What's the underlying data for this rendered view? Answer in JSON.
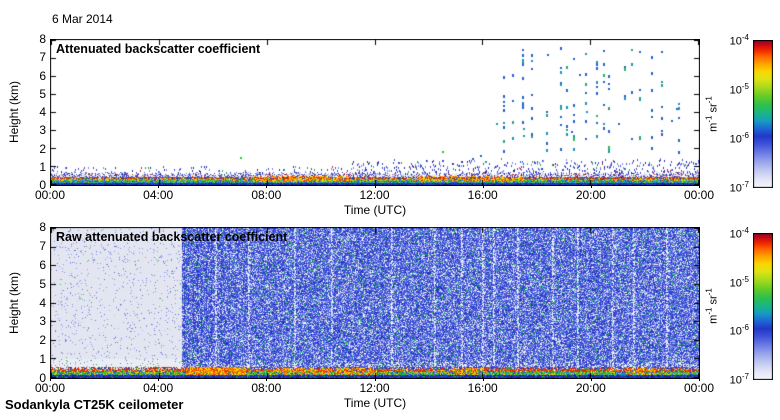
{
  "page": {
    "background": "#ffffff",
    "date_label": "6 Mar 2014",
    "footer_label": "Sodankyla CT25K ceilometer"
  },
  "colorbar": {
    "unit_plain": "m-1 sr-1",
    "unit_segments": [
      {
        "text": "m",
        "sup": "-1"
      },
      {
        "text": " sr",
        "sup": "-1"
      }
    ],
    "tick_labels": [
      {
        "base": "10",
        "exp": "-4"
      },
      {
        "base": "10",
        "exp": "-5"
      },
      {
        "base": "10",
        "exp": "-6"
      },
      {
        "base": "10",
        "exp": "-7"
      }
    ],
    "colormap_stops": [
      [
        0,
        "#f5f5fd"
      ],
      [
        0.05,
        "#e7e9f8"
      ],
      [
        0.11,
        "#c6cdf2"
      ],
      [
        0.18,
        "#97a3ec"
      ],
      [
        0.24,
        "#6a7ae4"
      ],
      [
        0.3,
        "#3c50da"
      ],
      [
        0.35,
        "#2438c8"
      ],
      [
        0.4,
        "#1e66d4"
      ],
      [
        0.45,
        "#189ac4"
      ],
      [
        0.5,
        "#1ab48a"
      ],
      [
        0.56,
        "#2ec04e"
      ],
      [
        0.62,
        "#66cc28"
      ],
      [
        0.68,
        "#a8da1c"
      ],
      [
        0.74,
        "#e0e414"
      ],
      [
        0.79,
        "#fbd500"
      ],
      [
        0.84,
        "#ffa300"
      ],
      [
        0.89,
        "#ff6400"
      ],
      [
        0.93,
        "#ee2a00"
      ],
      [
        0.97,
        "#c80618"
      ],
      [
        1,
        "#7c0a28"
      ]
    ]
  },
  "chart_data": [
    {
      "type": "heatmap",
      "title": "Attenuated backscatter coefficient",
      "xlabel": "Time (UTC)",
      "ylabel": "Height (km)",
      "xlim_hours": [
        0,
        24
      ],
      "ylim_km": [
        0,
        8
      ],
      "x_ticks_hours": [
        0,
        4,
        8,
        12,
        16,
        20,
        24
      ],
      "x_tick_labels": [
        "00:00",
        "04:00",
        "08:00",
        "12:00",
        "16:00",
        "20:00",
        "00:00"
      ],
      "y_tick_labels": [
        "8",
        "7",
        "6",
        "5",
        "4",
        "3",
        "2",
        "1",
        "0"
      ],
      "colorbar": {
        "scale": "log10",
        "min": 1e-07,
        "max": 0.0001,
        "unit": "m-1 sr-1",
        "tick_values": [
          0.0001,
          1e-05,
          1e-06,
          1e-07
        ]
      },
      "features": {
        "background": "clear sky, below noise threshold (white)",
        "surface_aerosol_layer": {
          "height_km": [
            0,
            0.6
          ],
          "value_range": "1e-6 to 1e-4 m-1 sr-1",
          "hot_segments_hours": [
            [
              7.5,
              11.0,
              0.55
            ],
            [
              13.5,
              17.5,
              0.45
            ]
          ]
        },
        "precip_streaks": {
          "hours_range": [
            16.6,
            23.6
          ],
          "height_km": [
            1.8,
            7.6
          ],
          "value": "~1e-6 m-1 sr-1",
          "columns_hours": [
            16.8,
            17.15,
            17.5,
            17.85,
            18.4,
            18.9,
            19.15,
            19.4,
            19.85,
            20.25,
            20.5,
            20.7,
            21.3,
            21.55,
            21.85,
            22.3,
            22.65,
            23.3
          ]
        },
        "isolated_echoes": [
          {
            "hour": 7.0,
            "km": 1.5,
            "color": "#22cc22"
          },
          {
            "hour": 14.5,
            "km": 1.85,
            "color": "#22cc22"
          },
          {
            "hour": 15.6,
            "km": 1.45,
            "color": "#2a62d0"
          },
          {
            "hour": 15.9,
            "km": 1.6,
            "color": "#2a62d0"
          },
          {
            "hour": 16.1,
            "km": 1.3,
            "color": "#1f96b4"
          }
        ]
      }
    },
    {
      "type": "heatmap",
      "title": "Raw attenuated backscatter coefficient",
      "xlabel": "Time (UTC)",
      "ylabel": "Height (km)",
      "xlim_hours": [
        0,
        24
      ],
      "ylim_km": [
        0,
        8
      ],
      "x_ticks_hours": [
        0,
        4,
        8,
        12,
        16,
        20,
        24
      ],
      "x_tick_labels": [
        "00:00",
        "04:00",
        "08:00",
        "12:00",
        "16:00",
        "20:00",
        "00:00"
      ],
      "y_tick_labels": [
        "8",
        "7",
        "6",
        "5",
        "4",
        "3",
        "2",
        "1",
        "0"
      ],
      "colorbar": {
        "scale": "log10",
        "min": 1e-07,
        "max": 0.0001,
        "unit": "m-1 sr-1",
        "tick_values": [
          0.0001,
          1e-05,
          1e-06,
          1e-07
        ]
      },
      "features": {
        "low_noise_period_hours": [
          0,
          4.87
        ],
        "dense_noise_region": {
          "hours": [
            4.87,
            24
          ],
          "value": "~1e-6 m-1 sr-1",
          "appearance": "dense blue speckle with pale vertical streaks and green flecks"
        },
        "light_streak_columns_hours": [
          6.1,
          7.3,
          9.0,
          10.4,
          12.6,
          14.2,
          15.2,
          16.0,
          16.4,
          17.3,
          18.6,
          19.5,
          20.8,
          21.6,
          22.8
        ],
        "dark_stripe_columns_hours": [
          4.95,
          5.1,
          5.25,
          5.4,
          5.55,
          5.75,
          5.95,
          6.3,
          6.6
        ],
        "surface_aerosol_layer": {
          "height_km": [
            0,
            0.55
          ],
          "value_range": "1e-6 to 1e-4 m-1 sr-1",
          "hot_segments_hours": [
            [
              5.0,
              7.2,
              0.85
            ],
            [
              8.4,
              12.0,
              0.5
            ],
            [
              14.8,
              16.1,
              0.45
            ],
            [
              21.3,
              22.4,
              0.5
            ]
          ]
        }
      }
    }
  ]
}
